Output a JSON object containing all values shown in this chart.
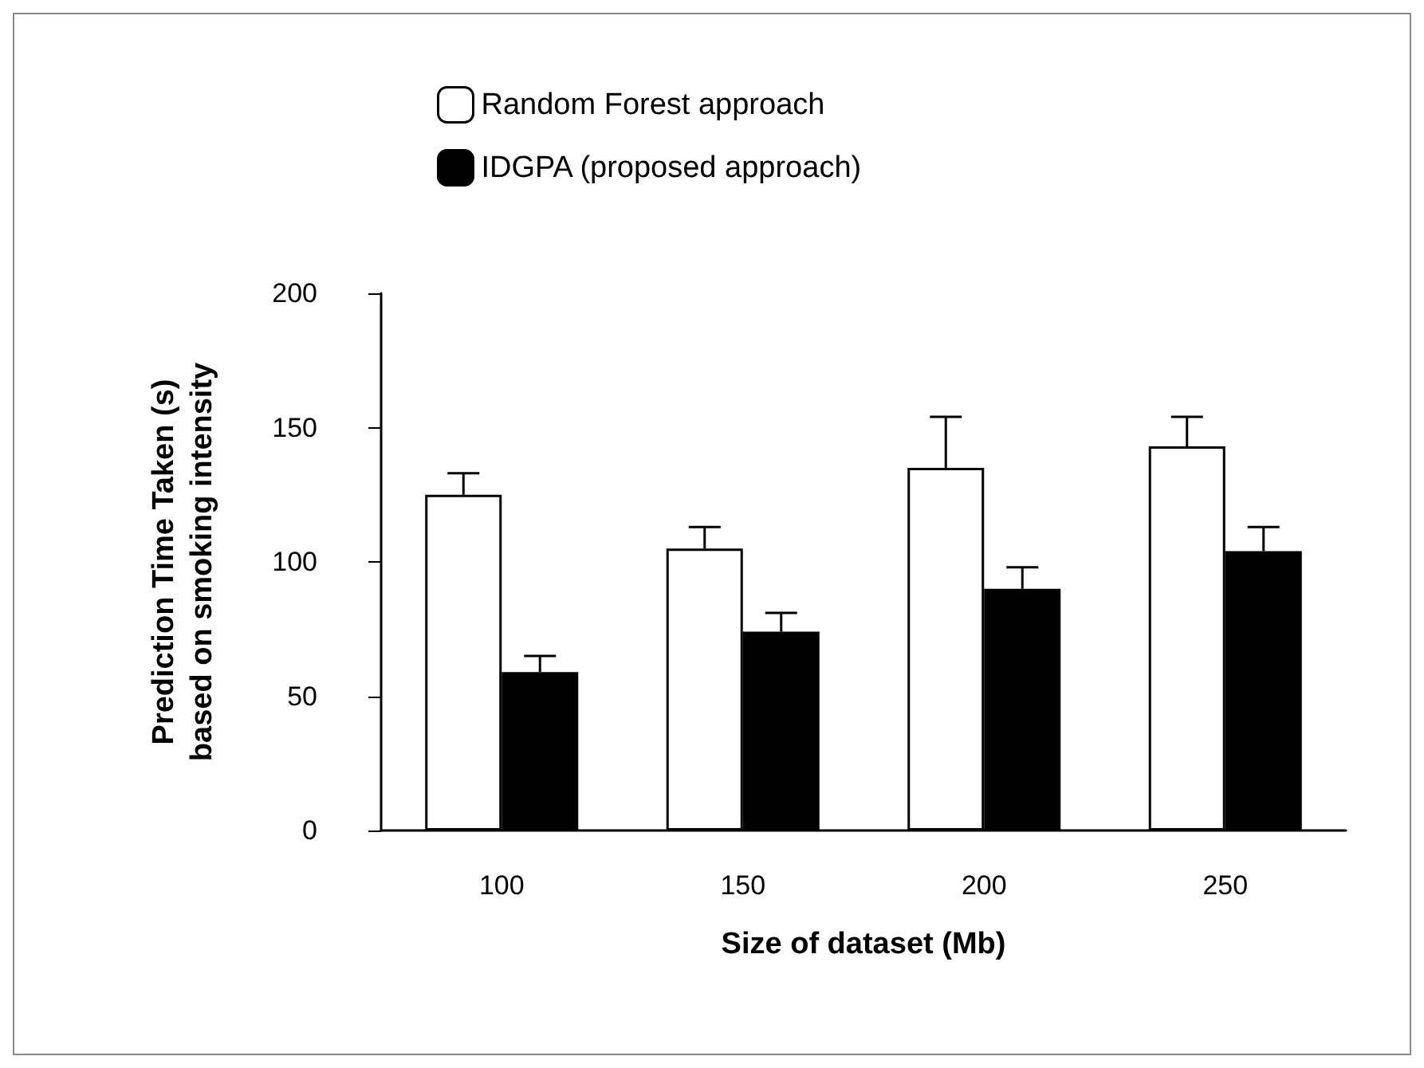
{
  "chart_data": {
    "type": "bar",
    "xlabel": "Size of dataset (Mb)",
    "ylabel": "Prediction Time Taken (s)\nbased on smoking intensity",
    "categories": [
      "100",
      "150",
      "200",
      "250"
    ],
    "series": [
      {
        "name": "Random Forest approach",
        "color": "#ffffff",
        "values": [
          125,
          105,
          135,
          143
        ],
        "errors": [
          [
            125,
            133
          ],
          [
            105,
            113
          ],
          [
            135,
            154
          ],
          [
            143,
            154
          ]
        ]
      },
      {
        "name": "IDGPA (proposed approach)",
        "color": "#000000",
        "values": [
          59,
          74,
          90,
          104
        ],
        "errors": [
          [
            59,
            65
          ],
          [
            74,
            81
          ],
          [
            90,
            98
          ],
          [
            104,
            113
          ]
        ]
      }
    ],
    "ylim": [
      0,
      200
    ],
    "yticks": [
      0,
      50,
      100,
      150,
      200
    ],
    "grid": false,
    "legend": "top"
  }
}
